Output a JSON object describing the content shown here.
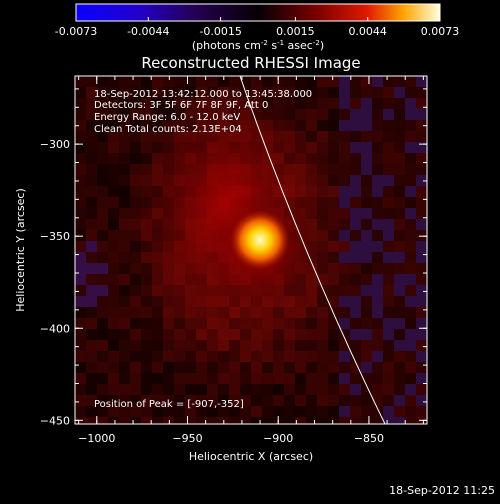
{
  "colorbar": {
    "tick_labels": [
      "-0.0073",
      "-0.0044",
      "-0.0015",
      "0.0015",
      "0.0044",
      "0.0073"
    ],
    "tick_values": [
      -0.0073,
      -0.0044,
      -0.0015,
      0.0015,
      0.0044,
      0.0073
    ],
    "range": [
      -0.0073,
      0.0073
    ],
    "units_pre": "(photons cm",
    "units_exp1": "-2",
    "units_mid": " s",
    "units_exp2": "-1",
    "units_post": " asec",
    "units_exp3": "-2",
    "units_close": ")"
  },
  "plot": {
    "title": "Reconstructed RHESSI Image",
    "xlabel": "Heliocentric X (arcsec)",
    "ylabel": "Heliocentric Y (arcsec)",
    "xlim": [
      -1012,
      -818
    ],
    "ylim": [
      -452,
      -263
    ],
    "x_ticks": [
      -1000,
      -950,
      -900,
      -850
    ],
    "x_tick_labels": [
      "−1000",
      "−950",
      "−900",
      "−850"
    ],
    "y_ticks": [
      -300,
      -350,
      -400,
      -450
    ],
    "y_tick_labels": [
      "−300",
      "−350",
      "−400",
      "−450"
    ],
    "annotations": [
      "18-Sep-2012 13:42:12.000 to 13:45:38.000",
      "Detectors: 3F 5F 6F 7F 8F 9F, Att 0",
      "Energy Range: 6.0 - 12.0 keV",
      "Clean     Total counts: 2.13E+04"
    ],
    "peak_label": "Position of Peak = [-907,-352]",
    "peak": [
      -907,
      -352
    ],
    "limb_color": "#ffffff"
  },
  "footer": {
    "timestamp": "18-Sep-2012 11:25"
  }
}
